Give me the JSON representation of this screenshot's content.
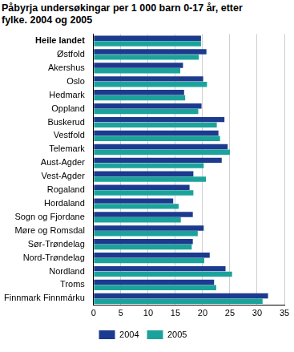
{
  "chart_data": {
    "type": "bar",
    "orientation": "horizontal",
    "title": "Påbyrja undersøkingar per 1 000 barn 0-17 år, etter fylke. 2004 og 2005",
    "categories": [
      "Heile landet",
      "Østfold",
      "Akershus",
      "Oslo",
      "Hedmark",
      "Oppland",
      "Buskerud",
      "Vestfold",
      "Telemark",
      "Aust-Agder",
      "Vest-Agder",
      "Rogaland",
      "Hordaland",
      "Sogn og Fjordane",
      "Møre og Romsdal",
      "Sør-Trøndelag",
      "Nord-Trøndelag",
      "Nordland",
      "Troms",
      "Finnmark Finnmárku"
    ],
    "series": [
      {
        "name": "2004",
        "color": "#1c3b8e",
        "values": [
          19.7,
          20.7,
          16.4,
          20.1,
          16.6,
          19.8,
          24.0,
          22.9,
          24.6,
          23.5,
          18.3,
          17.6,
          14.6,
          18.2,
          20.2,
          18.2,
          21.3,
          24.2,
          22.1,
          32.0
        ]
      },
      {
        "name": "2005",
        "color": "#1ba39b",
        "values": [
          19.7,
          19.3,
          15.9,
          20.8,
          16.8,
          19.2,
          22.6,
          23.2,
          25.0,
          20.2,
          20.6,
          18.3,
          15.6,
          16.0,
          19.1,
          18.0,
          20.3,
          25.4,
          22.5,
          31.0
        ]
      }
    ],
    "xlim": [
      0,
      35
    ],
    "xticks": [
      0,
      5,
      10,
      15,
      20,
      25,
      30,
      35
    ],
    "grid": true,
    "legend": "bottom"
  }
}
